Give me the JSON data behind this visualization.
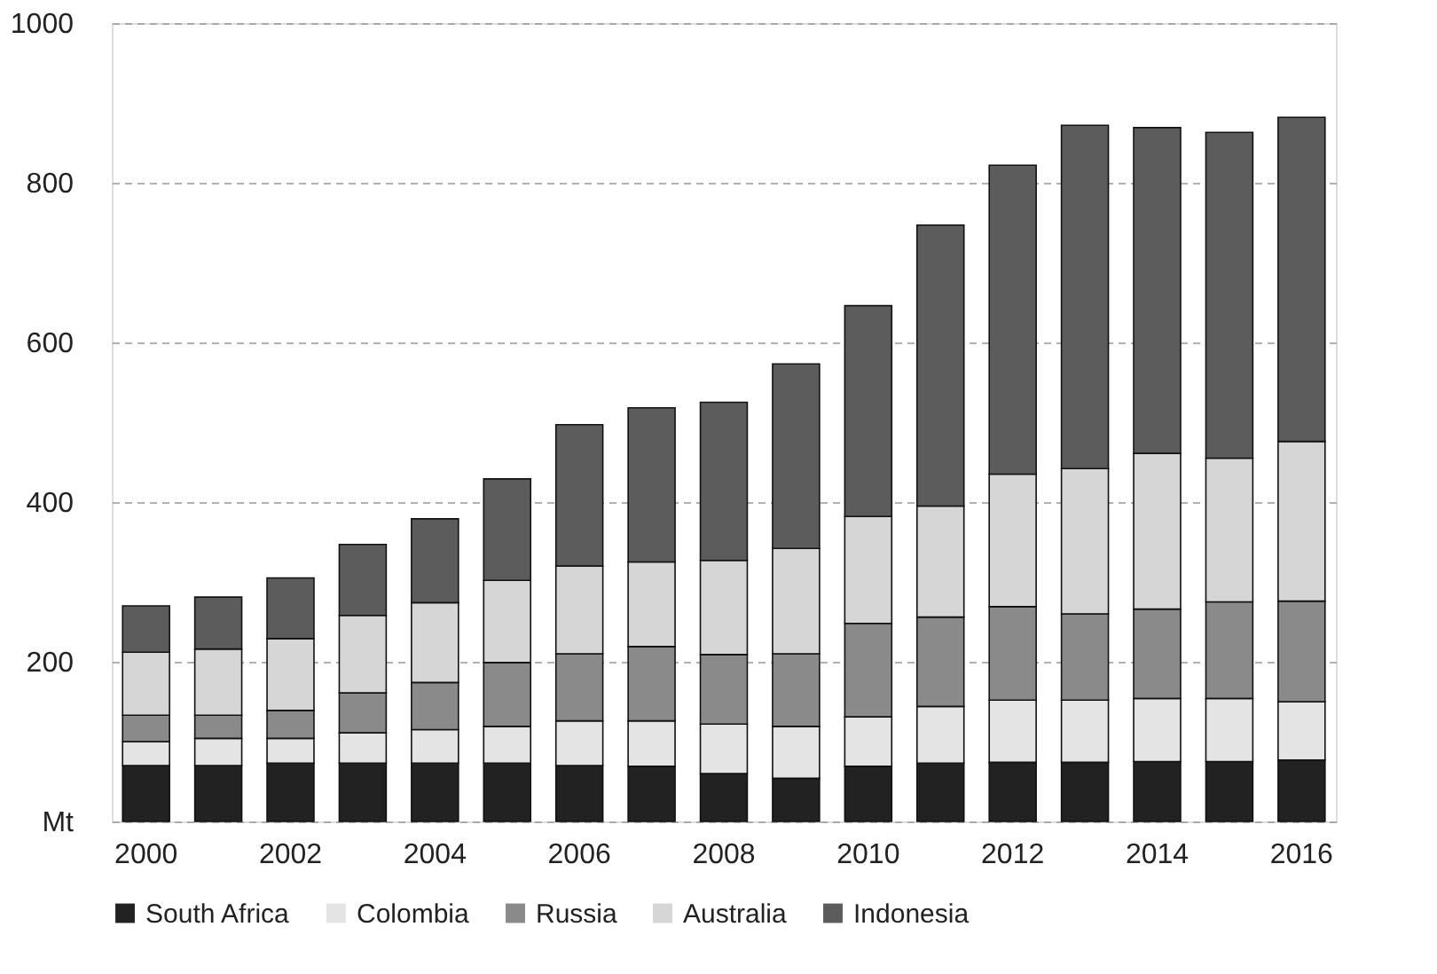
{
  "chart_data": {
    "type": "bar",
    "stacked": true,
    "categories": [
      "2000",
      null,
      "2002",
      null,
      "2004",
      null,
      "2006",
      null,
      "2008",
      null,
      "2010",
      null,
      "2012",
      null,
      "2014",
      null,
      "2016"
    ],
    "series": [
      {
        "name": "South Africa",
        "color": "#222222",
        "values": [
          70,
          70,
          73,
          73,
          73,
          73,
          70,
          69,
          60,
          54,
          69,
          73,
          74,
          74,
          75,
          75,
          77
        ]
      },
      {
        "name": "Colombia",
        "color": "#e4e4e4",
        "values": [
          30,
          34,
          31,
          38,
          42,
          46,
          56,
          57,
          62,
          65,
          62,
          71,
          78,
          78,
          79,
          79,
          73
        ]
      },
      {
        "name": "Russia",
        "color": "#8a8a8a",
        "values": [
          33,
          29,
          35,
          50,
          59,
          80,
          84,
          93,
          87,
          91,
          117,
          112,
          117,
          108,
          112,
          121,
          126
        ]
      },
      {
        "name": "Australia",
        "color": "#d6d6d6",
        "values": [
          79,
          83,
          90,
          97,
          100,
          103,
          110,
          106,
          118,
          132,
          134,
          139,
          166,
          182,
          195,
          180,
          200
        ]
      },
      {
        "name": "Indonesia",
        "color": "#5c5c5c",
        "values": [
          58,
          65,
          76,
          89,
          105,
          127,
          177,
          193,
          198,
          231,
          264,
          352,
          387,
          430,
          408,
          408,
          406
        ]
      }
    ],
    "ylim": [
      0,
      1000
    ],
    "yticks": [
      {
        "value": 0,
        "label": "Mt"
      },
      200,
      400,
      600,
      800,
      1000
    ],
    "grid": "y",
    "legend": "bottom"
  }
}
